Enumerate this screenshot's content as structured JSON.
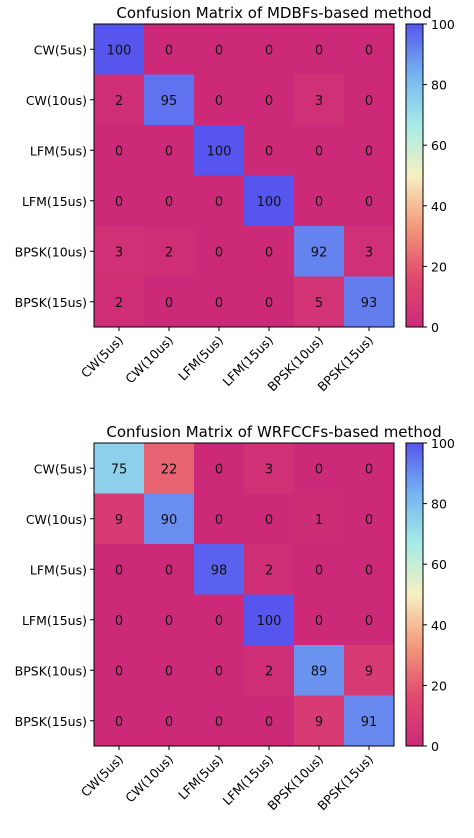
{
  "chart_data": [
    {
      "type": "heatmap",
      "title": "Confusion Matrix of MDBFs-based method",
      "row_labels": [
        "CW(5us)",
        "CW(10us)",
        "LFM(5us)",
        "LFM(15us)",
        "BPSK(10us)",
        "BPSK(15us)"
      ],
      "col_labels": [
        "CW(5us)",
        "CW(10us)",
        "LFM(5us)",
        "LFM(15us)",
        "BPSK(10us)",
        "BPSK(15us)"
      ],
      "values": [
        [
          100,
          0,
          0,
          0,
          0,
          0
        ],
        [
          2,
          95,
          0,
          0,
          3,
          0
        ],
        [
          0,
          0,
          100,
          0,
          0,
          0
        ],
        [
          0,
          0,
          0,
          100,
          0,
          0
        ],
        [
          3,
          2,
          0,
          0,
          92,
          3
        ],
        [
          2,
          0,
          0,
          0,
          5,
          93
        ]
      ],
      "colorbar": {
        "min": 0,
        "max": 100,
        "ticks": [
          0,
          20,
          40,
          60,
          80,
          100
        ]
      },
      "xlabel": "",
      "ylabel": "",
      "grid": false
    },
    {
      "type": "heatmap",
      "title": "Confusion Matrix of WRFCCFs-based method",
      "row_labels": [
        "CW(5us)",
        "CW(10us)",
        "LFM(5us)",
        "LFM(15us)",
        "BPSK(10us)",
        "BPSK(15us)"
      ],
      "col_labels": [
        "CW(5us)",
        "CW(10us)",
        "LFM(5us)",
        "LFM(15us)",
        "BPSK(10us)",
        "BPSK(15us)"
      ],
      "values": [
        [
          75,
          22,
          0,
          3,
          0,
          0
        ],
        [
          9,
          90,
          0,
          0,
          1,
          0
        ],
        [
          0,
          0,
          98,
          2,
          0,
          0
        ],
        [
          0,
          0,
          0,
          100,
          0,
          0
        ],
        [
          0,
          0,
          0,
          2,
          89,
          9
        ],
        [
          0,
          0,
          0,
          0,
          9,
          91
        ]
      ],
      "colorbar": {
        "min": 0,
        "max": 100,
        "ticks": [
          0,
          20,
          40,
          60,
          80,
          100
        ]
      },
      "xlabel": "",
      "ylabel": "",
      "grid": false
    }
  ],
  "colormap": [
    "#cc2a78",
    "#e24a6e",
    "#f49a7c",
    "#f6f0c2",
    "#a6ece6",
    "#75b4f0",
    "#5656ee"
  ]
}
